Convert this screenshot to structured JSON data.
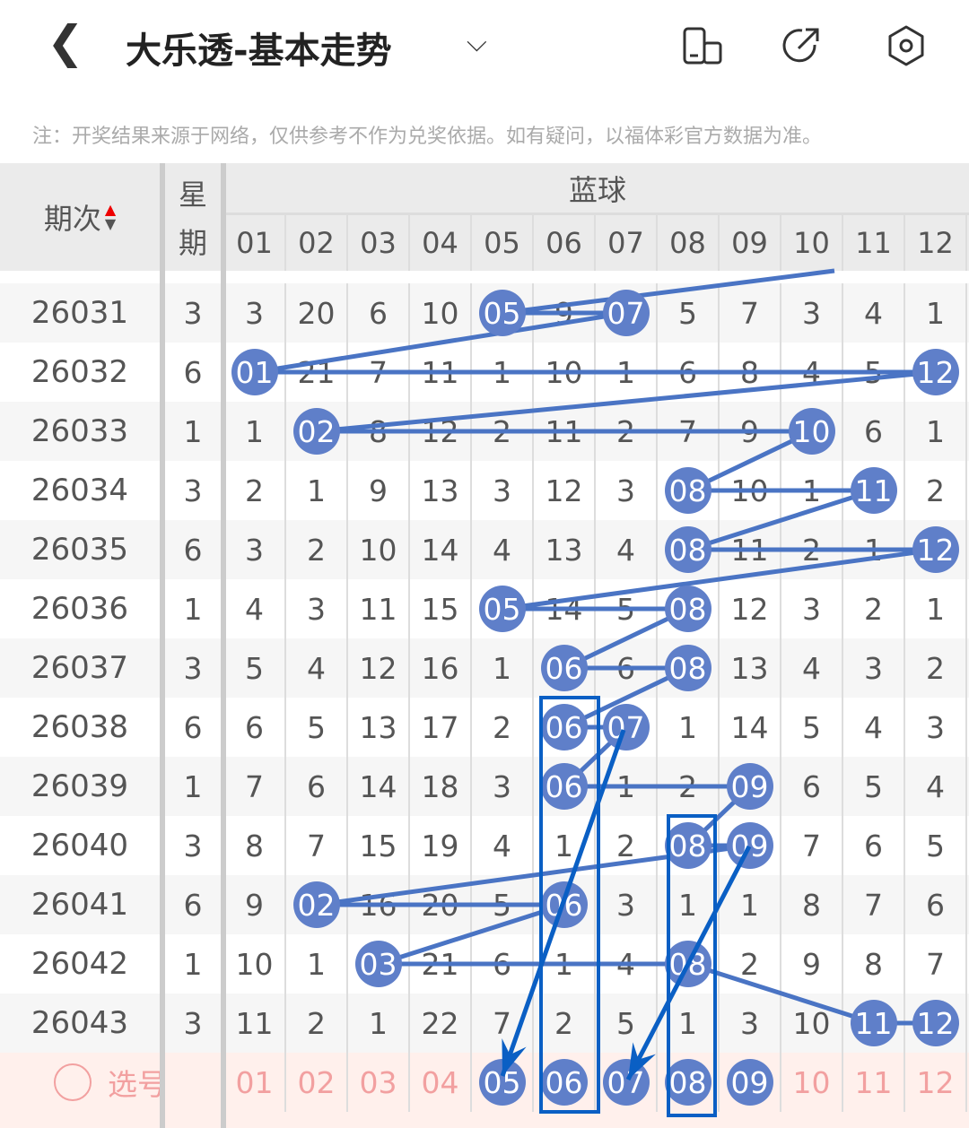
{
  "header": {
    "title": "大乐透-基本走势",
    "back_icon": "chevron-left-icon",
    "dropdown_icon": "chevron-down-icon",
    "icons": [
      "screen-rotate-icon",
      "share-icon",
      "settings-icon"
    ]
  },
  "note": "注：开奖结果来源于网络，仅供参考不作为兑奖依据。如有疑问，以福体彩官方数据为准。",
  "table": {
    "col_period": "期次",
    "col_week_1": "星",
    "col_week_2": "期",
    "group": "蓝球",
    "numbers": [
      "01",
      "02",
      "03",
      "04",
      "05",
      "06",
      "07",
      "08",
      "09",
      "10",
      "11",
      "12"
    ],
    "rows": [
      {
        "period": "26031",
        "week": "3",
        "cells": [
          "3",
          "20",
          "6",
          "10",
          "05",
          "9",
          "07",
          "5",
          "7",
          "3",
          "4",
          "1"
        ],
        "hits": [
          5,
          7
        ]
      },
      {
        "period": "26032",
        "week": "6",
        "cells": [
          "01",
          "21",
          "7",
          "11",
          "1",
          "10",
          "1",
          "6",
          "8",
          "4",
          "5",
          "12"
        ],
        "hits": [
          1,
          12
        ]
      },
      {
        "period": "26033",
        "week": "1",
        "cells": [
          "1",
          "02",
          "8",
          "12",
          "2",
          "11",
          "2",
          "7",
          "9",
          "10",
          "6",
          "1"
        ],
        "hits": [
          2,
          10
        ]
      },
      {
        "period": "26034",
        "week": "3",
        "cells": [
          "2",
          "1",
          "9",
          "13",
          "3",
          "12",
          "3",
          "08",
          "10",
          "1",
          "11",
          "2"
        ],
        "hits": [
          8,
          11
        ]
      },
      {
        "period": "26035",
        "week": "6",
        "cells": [
          "3",
          "2",
          "10",
          "14",
          "4",
          "13",
          "4",
          "08",
          "11",
          "2",
          "1",
          "12"
        ],
        "hits": [
          8,
          12
        ]
      },
      {
        "period": "26036",
        "week": "1",
        "cells": [
          "4",
          "3",
          "11",
          "15",
          "05",
          "14",
          "5",
          "08",
          "12",
          "3",
          "2",
          "1"
        ],
        "hits": [
          5,
          8
        ]
      },
      {
        "period": "26037",
        "week": "3",
        "cells": [
          "5",
          "4",
          "12",
          "16",
          "1",
          "06",
          "6",
          "08",
          "13",
          "4",
          "3",
          "2"
        ],
        "hits": [
          6,
          8
        ]
      },
      {
        "period": "26038",
        "week": "6",
        "cells": [
          "6",
          "5",
          "13",
          "17",
          "2",
          "06",
          "07",
          "1",
          "14",
          "5",
          "4",
          "3"
        ],
        "hits": [
          6,
          7
        ]
      },
      {
        "period": "26039",
        "week": "1",
        "cells": [
          "7",
          "6",
          "14",
          "18",
          "3",
          "06",
          "1",
          "2",
          "09",
          "6",
          "5",
          "4"
        ],
        "hits": [
          6,
          9
        ]
      },
      {
        "period": "26040",
        "week": "3",
        "cells": [
          "8",
          "7",
          "15",
          "19",
          "4",
          "1",
          "2",
          "08",
          "09",
          "7",
          "6",
          "5"
        ],
        "hits": [
          8,
          9
        ]
      },
      {
        "period": "26041",
        "week": "6",
        "cells": [
          "9",
          "02",
          "16",
          "20",
          "5",
          "06",
          "3",
          "1",
          "1",
          "8",
          "7",
          "6"
        ],
        "hits": [
          2,
          6
        ]
      },
      {
        "period": "26042",
        "week": "1",
        "cells": [
          "10",
          "1",
          "03",
          "21",
          "6",
          "1",
          "4",
          "08",
          "2",
          "9",
          "8",
          "7"
        ],
        "hits": [
          3,
          8
        ]
      },
      {
        "period": "26043",
        "week": "3",
        "cells": [
          "11",
          "2",
          "1",
          "22",
          "7",
          "2",
          "5",
          "1",
          "3",
          "10",
          "11",
          "12"
        ],
        "hits": [
          11,
          12
        ]
      }
    ],
    "select_label": "选号",
    "selected": [
      5,
      6,
      7,
      8,
      9
    ]
  },
  "colors": {
    "ball": "#5f7fc9",
    "line": "#4a74c4",
    "annotation": "#0a5fc4",
    "select_text": "#f2a0a0",
    "select_bg": "#fff0ec"
  }
}
